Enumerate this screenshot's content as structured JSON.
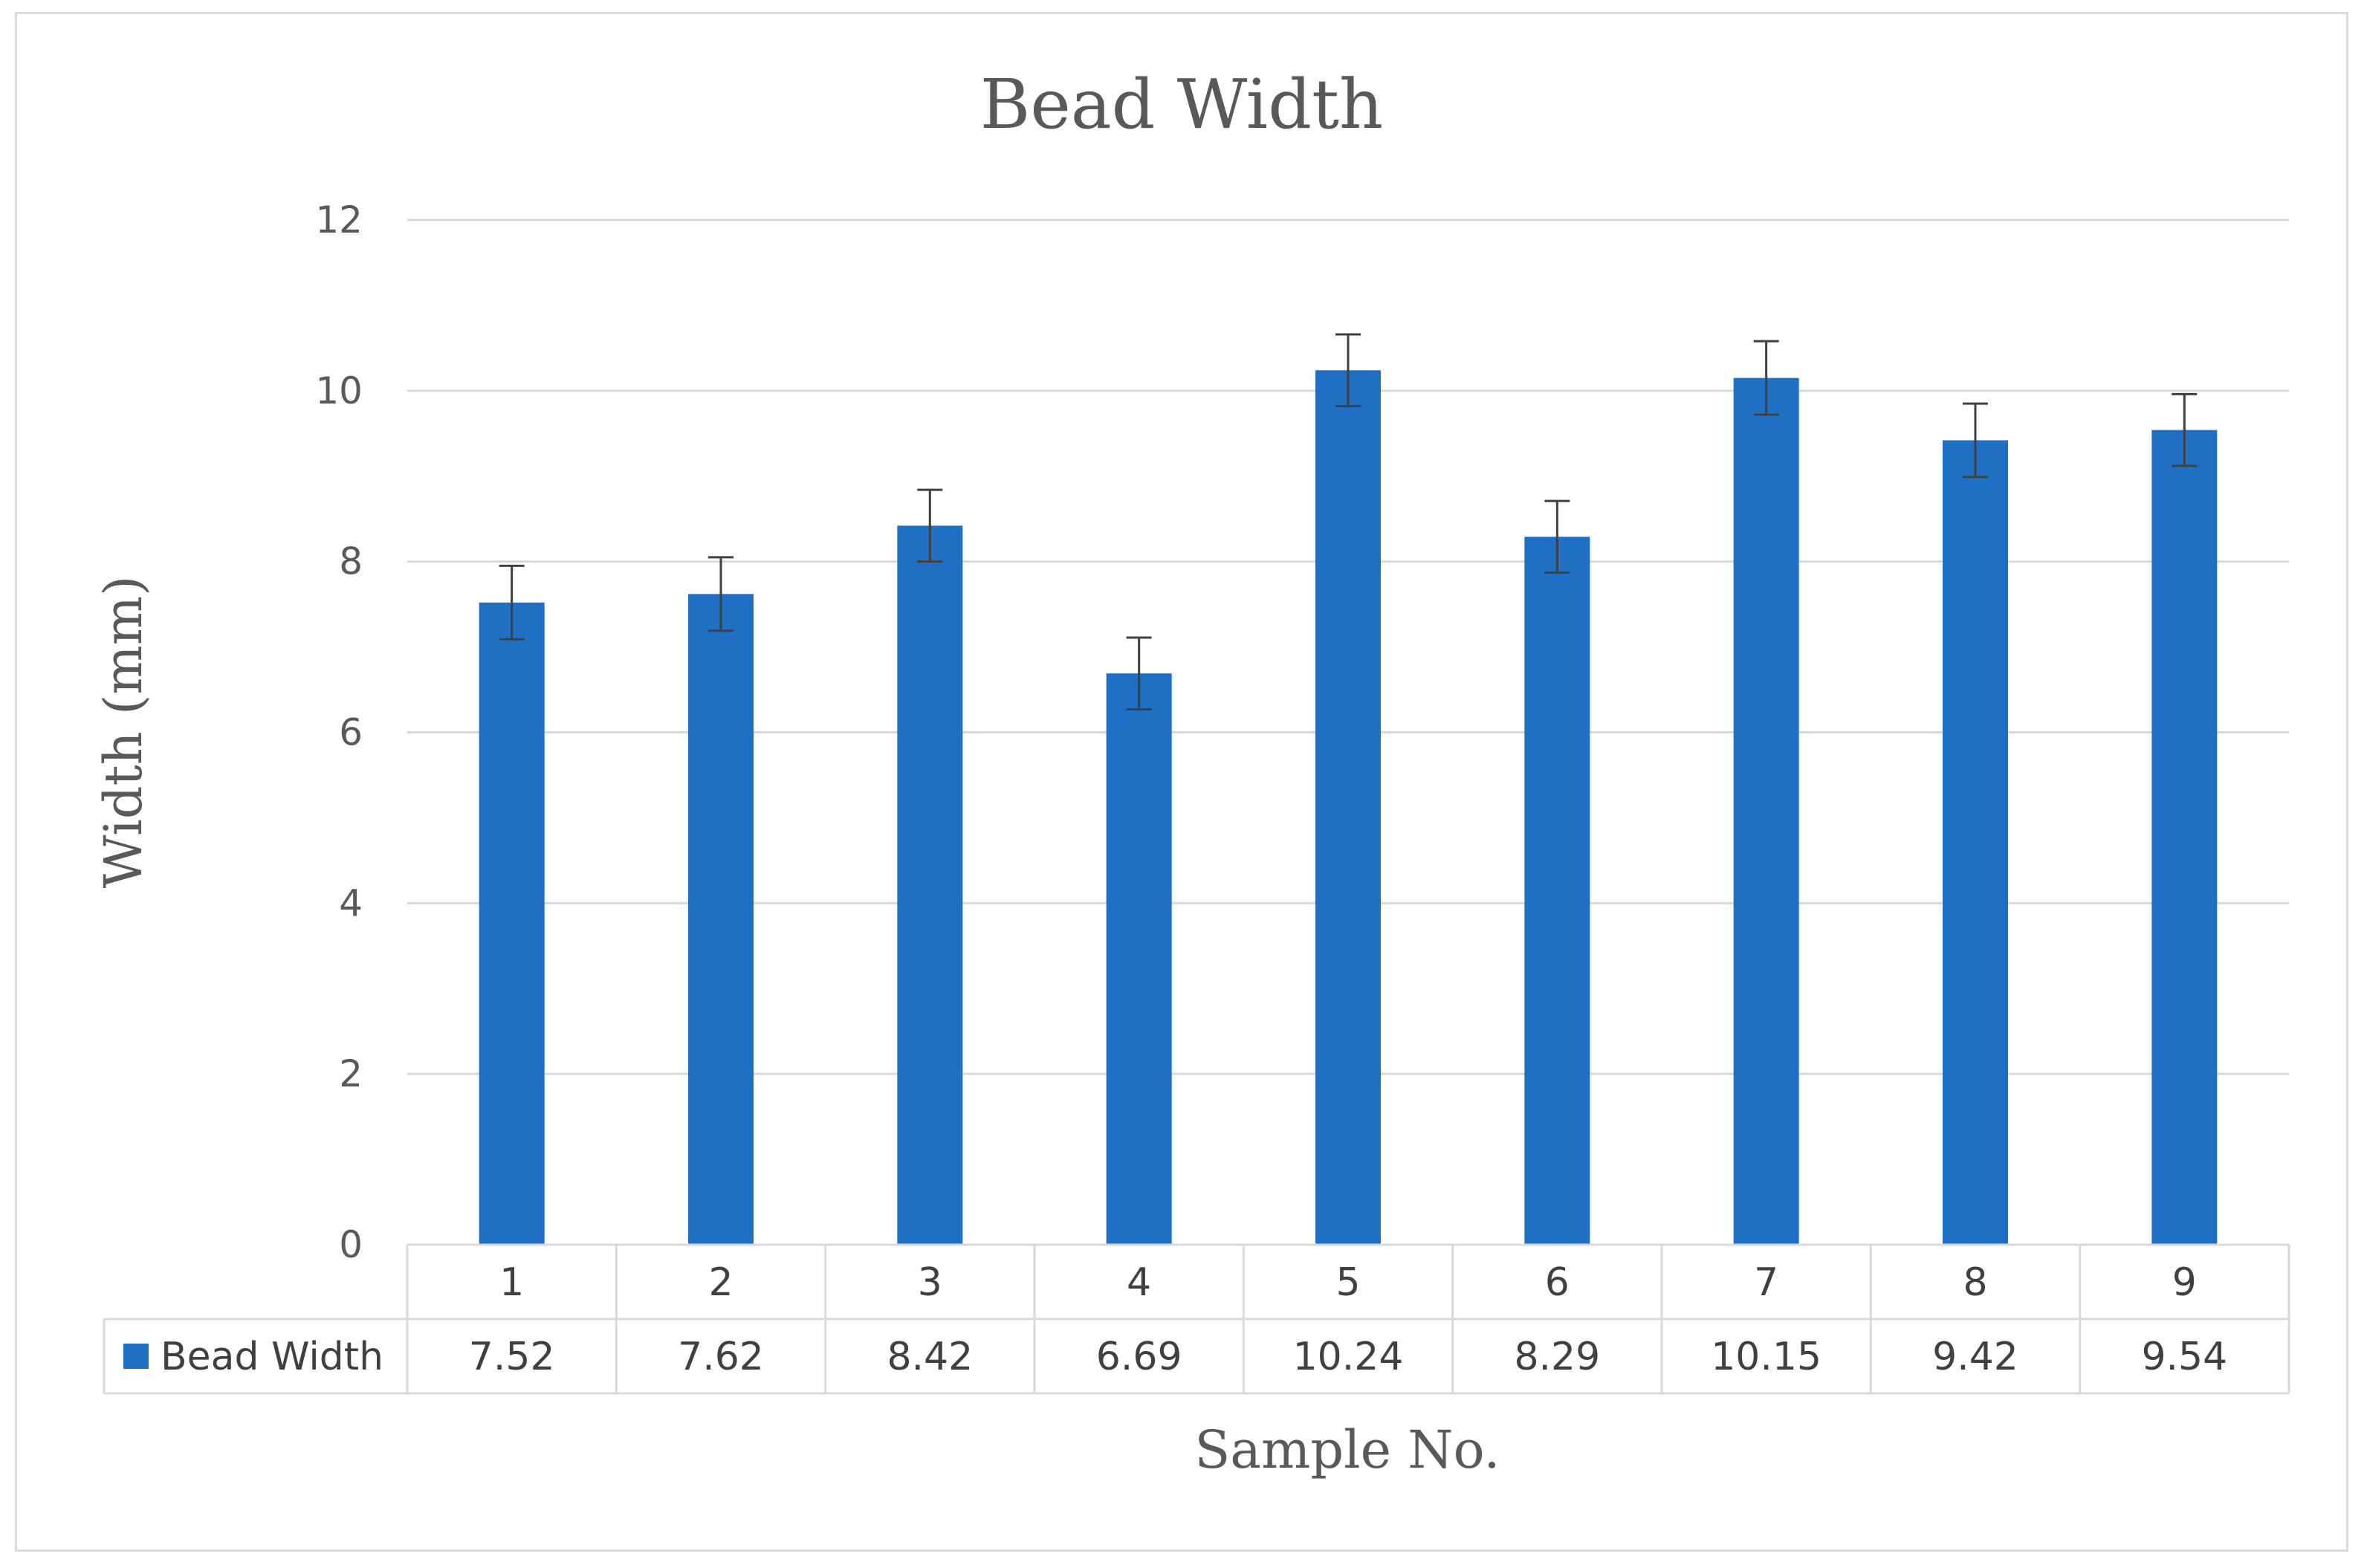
{
  "chart_data": {
    "type": "bar",
    "title": "Bead Width",
    "xlabel": "Sample No.",
    "ylabel": "Width (mm)",
    "ylim": [
      0,
      12
    ],
    "yticks": [
      0,
      2,
      4,
      6,
      8,
      10,
      12
    ],
    "grid": true,
    "categories": [
      "1",
      "2",
      "3",
      "4",
      "5",
      "6",
      "7",
      "8",
      "9"
    ],
    "series": [
      {
        "name": "Bead Width",
        "color": "#1f6fc5",
        "values": [
          7.52,
          7.62,
          8.42,
          6.69,
          10.24,
          8.29,
          10.15,
          9.42,
          9.54
        ],
        "value_labels": [
          "7.52",
          "7.62",
          "8.42",
          "6.69",
          "10.24",
          "8.29",
          "10.15",
          "9.42",
          "9.54"
        ],
        "error": [
          0.43,
          0.43,
          0.42,
          0.42,
          0.42,
          0.42,
          0.43,
          0.43,
          0.42
        ]
      }
    ],
    "legend": "data table"
  }
}
